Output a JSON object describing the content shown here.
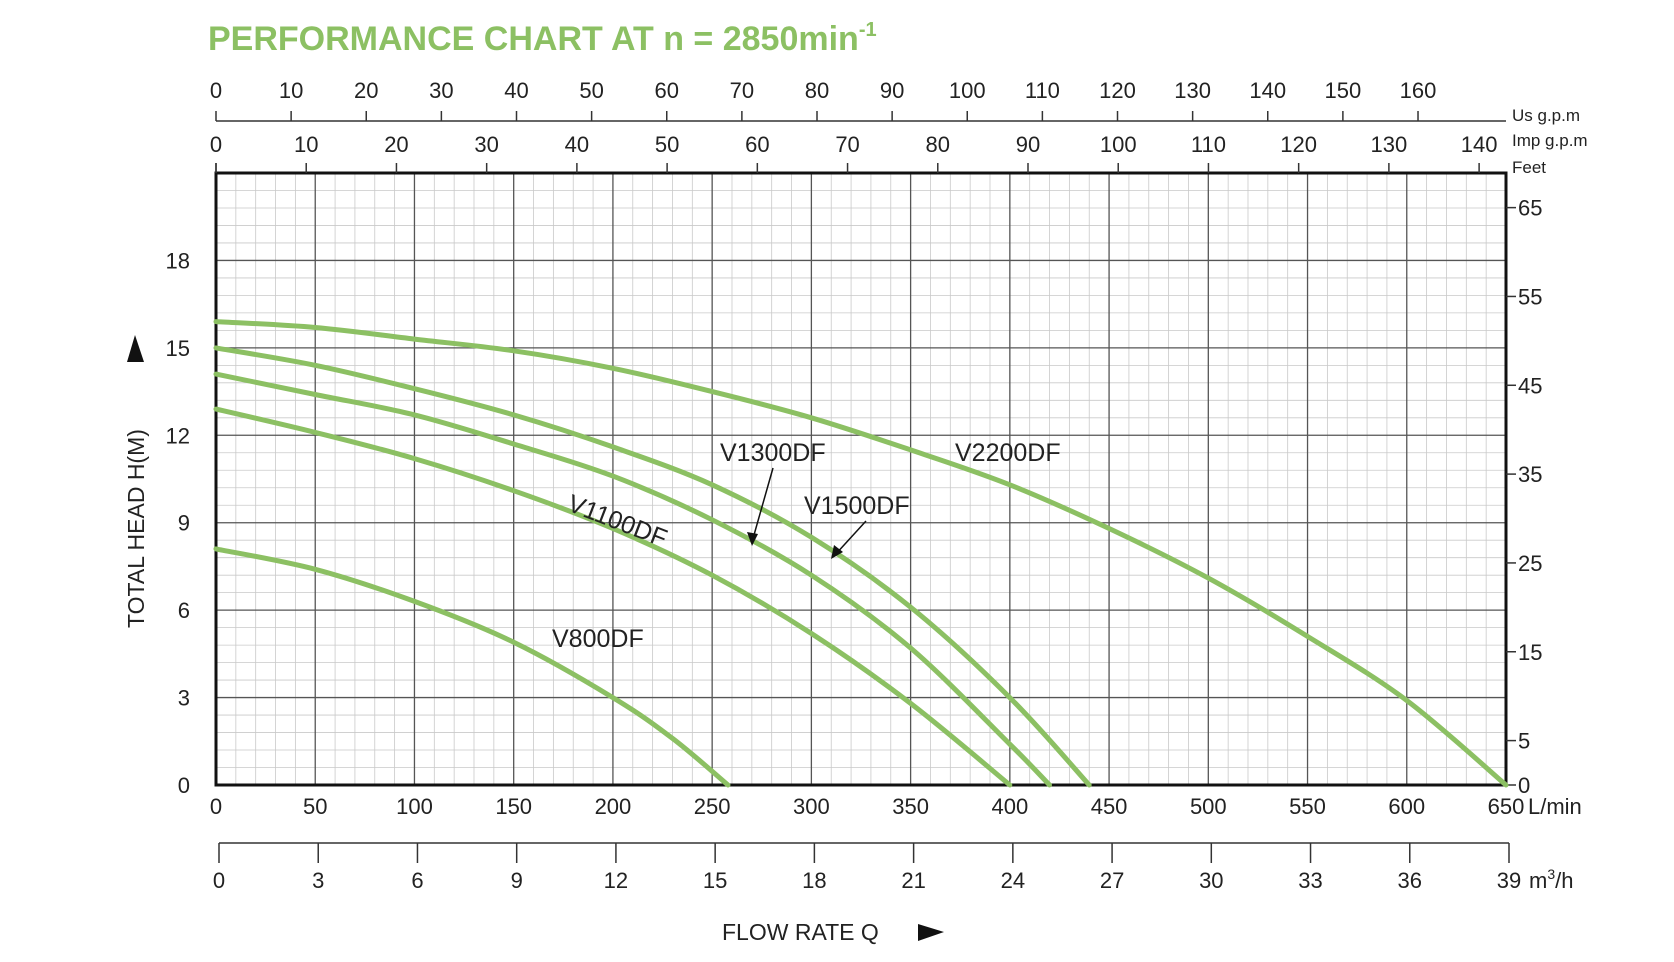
{
  "chart_data": {
    "type": "line",
    "title": "PERFORMANCE CHART AT n = 2850min",
    "title_superscript": "-1",
    "x_axis": {
      "label": "FLOW RATE Q",
      "unit": "L/min",
      "range": [
        0,
        650
      ],
      "ticks": [
        0,
        50,
        100,
        150,
        200,
        250,
        300,
        350,
        400,
        450,
        500,
        550,
        600,
        650
      ]
    },
    "x_axis_m3h": {
      "unit": "m³/h",
      "unit_base": "m",
      "unit_sup": "3",
      "unit_tail": "/h",
      "range": [
        0,
        39
      ],
      "ticks": [
        0,
        3,
        6,
        9,
        12,
        15,
        18,
        21,
        24,
        27,
        30,
        33,
        36,
        39
      ]
    },
    "x_axis_usgpm": {
      "unit": "Us g.p.m",
      "ticks": [
        0,
        10,
        20,
        30,
        40,
        50,
        60,
        70,
        80,
        90,
        100,
        110,
        120,
        130,
        140,
        150,
        160
      ]
    },
    "x_axis_impgpm": {
      "unit": "Imp g.p.m",
      "ticks": [
        0,
        10,
        20,
        30,
        40,
        50,
        60,
        70,
        80,
        90,
        100,
        110,
        120,
        130,
        140
      ]
    },
    "y_axis": {
      "label": "TOTAL HEAD H(M)",
      "range": [
        0,
        21
      ],
      "ticks": [
        0,
        3,
        6,
        9,
        12,
        15,
        18
      ]
    },
    "y_axis_feet": {
      "unit": "Feet",
      "ticks": [
        0,
        5,
        15,
        25,
        35,
        45,
        55,
        65
      ]
    },
    "grid": true,
    "line_color": "#8cc063",
    "series": [
      {
        "name": "V800DF",
        "x": [
          0,
          50,
          100,
          150,
          200,
          230,
          258
        ],
        "y": [
          8.1,
          7.4,
          6.3,
          4.9,
          3.0,
          1.6,
          0
        ]
      },
      {
        "name": "V1100DF",
        "x": [
          0,
          50,
          100,
          150,
          200,
          250,
          300,
          350,
          400
        ],
        "y": [
          12.9,
          12.1,
          11.2,
          10.1,
          8.8,
          7.2,
          5.2,
          2.8,
          0
        ]
      },
      {
        "name": "V1300DF",
        "x": [
          0,
          50,
          100,
          150,
          200,
          250,
          300,
          350,
          400,
          420
        ],
        "y": [
          14.1,
          13.4,
          12.7,
          11.7,
          10.6,
          9.1,
          7.2,
          4.7,
          1.4,
          0
        ]
      },
      {
        "name": "V1500DF",
        "x": [
          0,
          50,
          100,
          150,
          200,
          250,
          300,
          350,
          400,
          440
        ],
        "y": [
          15.0,
          14.4,
          13.6,
          12.7,
          11.6,
          10.3,
          8.5,
          6.1,
          3.0,
          0
        ]
      },
      {
        "name": "V2200DF",
        "x": [
          0,
          50,
          100,
          150,
          200,
          250,
          300,
          350,
          400,
          450,
          500,
          550,
          600,
          650
        ],
        "y": [
          15.9,
          15.7,
          15.3,
          14.9,
          14.3,
          13.5,
          12.6,
          11.5,
          10.3,
          8.8,
          7.1,
          5.1,
          2.9,
          0
        ]
      }
    ],
    "labels": {
      "V800DF": "V800DF",
      "V1100DF": "V1100DF",
      "V1300DF": "V1300DF",
      "V1500DF": "V1500DF",
      "V2200DF": "V2200DF"
    }
  }
}
